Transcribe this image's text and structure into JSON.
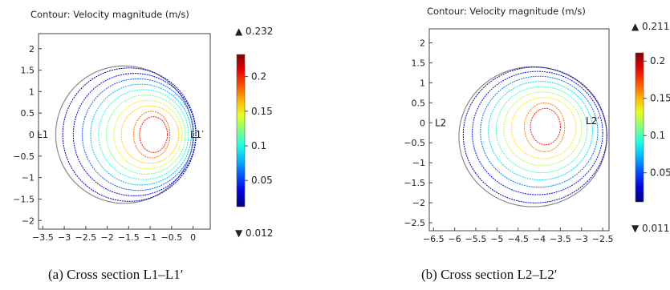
{
  "chart_data": [
    {
      "type": "contour",
      "title": "Contour: Velocity magnitude (m/s)",
      "caption": "(a) Cross section L1–L1′",
      "xlim": [
        -3.6,
        0.4
      ],
      "ylim": [
        -2.2,
        2.35
      ],
      "xticks": [
        -3.5,
        -3,
        -2.5,
        -2,
        -1.5,
        -1,
        -0.5,
        0
      ],
      "xtick_labels": [
        "−3.5",
        "−3",
        "−2.5",
        "−2",
        "−1.5",
        "−1",
        "−0.5",
        "0"
      ],
      "yticks": [
        2,
        1.5,
        1,
        0.5,
        0,
        -0.5,
        -1,
        -1.5,
        -2
      ],
      "ytick_labels": [
        "2",
        "1.5",
        "1",
        "0.5",
        "0",
        "−0.5",
        "−1",
        "−1.5",
        "−2"
      ],
      "circle": {
        "cx": -1.6,
        "cy": 0,
        "r": 1.6
      },
      "contour_center": {
        "cx": -0.8,
        "cy": 0
      },
      "contour_levels": [
        0.02,
        0.04,
        0.06,
        0.08,
        0.1,
        0.12,
        0.14,
        0.16,
        0.18,
        0.2
      ],
      "label_left": "L1",
      "label_right": "L1′",
      "colorbar": {
        "max_label": "▲ 0.232",
        "min_label": "▼ 0.012",
        "min": 0.012,
        "max": 0.232,
        "ticks": [
          0.2,
          0.15,
          0.1,
          0.05
        ],
        "tick_labels": [
          "0.2",
          "0.15",
          "0.1",
          "0.05"
        ]
      }
    },
    {
      "type": "contour",
      "title": "Contour: Velocity magnitude (m/s)",
      "caption": "(b) Cross section L2–L2′",
      "xlim": [
        -6.6,
        -2.35
      ],
      "ylim": [
        -2.7,
        2.35
      ],
      "xticks": [
        -6.5,
        -6,
        -5.5,
        -5,
        -4.5,
        -4,
        -3.5,
        -3,
        -2.5
      ],
      "xtick_labels": [
        "−6.5",
        "−6",
        "−5.5",
        "−5",
        "−4.5",
        "−4",
        "−3.5",
        "−3",
        "−2.5"
      ],
      "yticks": [
        2,
        1.5,
        1,
        0.5,
        0,
        -0.5,
        -1,
        -1.5,
        -2,
        -2.5
      ],
      "ytick_labels": [
        "2",
        "1.5",
        "1",
        "0.5",
        "0",
        "−0.5",
        "−1",
        "−1.5",
        "−2",
        "−2.5"
      ],
      "circle": {
        "cx": -4.15,
        "cy": -0.35,
        "r": 1.75
      },
      "contour_center": {
        "cx": -3.8,
        "cy": -0.05
      },
      "contour_levels": [
        0.02,
        0.04,
        0.06,
        0.08,
        0.1,
        0.12,
        0.14,
        0.16,
        0.18
      ],
      "label_left": "L2",
      "label_right": "L2′",
      "colorbar": {
        "max_label": "▲ 0.211",
        "min_label": "▼ 0.011",
        "min": 0.011,
        "max": 0.211,
        "ticks": [
          0.2,
          0.15,
          0.1,
          0.05
        ],
        "tick_labels": [
          "0.2",
          "0.15",
          "0.1",
          "0.05"
        ]
      }
    }
  ]
}
